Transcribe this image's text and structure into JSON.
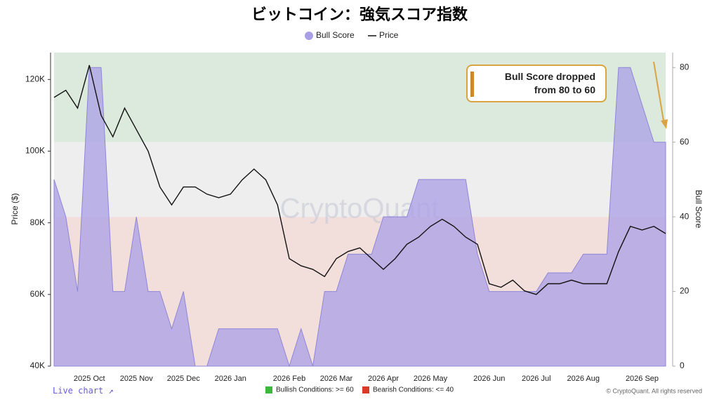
{
  "chart_data": {
    "type": "line",
    "title": "ビットコイン：強気スコア指数",
    "y_label": "Price ($)",
    "y2_label": "Bull Score",
    "watermark": "CryptoQuant",
    "annotation": "Bull Score dropped from 80 to 60",
    "live_chart": "Live chart ↗",
    "copyright": "© CryptoQuant. All rights reserved",
    "conditions": [
      {
        "label": "Bullish Conditions: >= 60",
        "color": "#3db83d"
      },
      {
        "label": "Bearish Conditions: <= 40",
        "color": "#d63b2b"
      }
    ],
    "bands": [
      {
        "from": 60,
        "to": 84,
        "color": "#dce9dd"
      },
      {
        "from": 40,
        "to": 60,
        "color": "#eeeeee"
      },
      {
        "from": 0,
        "to": 40,
        "color": "#f2dfdb"
      }
    ],
    "categories": [
      null,
      null,
      null,
      "2025 Oct",
      null,
      null,
      null,
      "2025 Nov",
      null,
      null,
      null,
      "2025 Dec",
      null,
      null,
      null,
      "2026 Jan",
      null,
      null,
      null,
      null,
      "2026 Feb",
      null,
      null,
      null,
      "2026 Mar",
      null,
      null,
      null,
      "2026 Apr",
      null,
      null,
      null,
      "2026 May",
      null,
      null,
      null,
      null,
      "2026 Jun",
      null,
      null,
      null,
      "2026 Jul",
      null,
      null,
      null,
      "2026 Aug",
      null,
      null,
      null,
      null,
      "2026 Sep",
      null,
      null
    ],
    "series": [
      {
        "name": "Bull Score",
        "color": "#a99fe6",
        "axis": "y2",
        "values": [
          50,
          40,
          20,
          80,
          80,
          20,
          20,
          40,
          20,
          20,
          10,
          20,
          0,
          0,
          10,
          10,
          10,
          10,
          10,
          10,
          0,
          10,
          0,
          20,
          20,
          30,
          30,
          30,
          40,
          40,
          40,
          50,
          50,
          50,
          50,
          50,
          30,
          20,
          20,
          20,
          20,
          20,
          25,
          25,
          25,
          30,
          30,
          30,
          80,
          80,
          70,
          60,
          60
        ]
      },
      {
        "name": "Price",
        "color": "#111111",
        "values": [
          115000,
          117000,
          112000,
          124000,
          110000,
          104000,
          112000,
          106000,
          100000,
          90000,
          85000,
          90000,
          90000,
          88000,
          87000,
          88000,
          92000,
          95000,
          92000,
          85000,
          70000,
          68000,
          67000,
          65000,
          70000,
          72000,
          73000,
          70000,
          67000,
          70000,
          74000,
          76000,
          79000,
          81000,
          79000,
          76000,
          74000,
          63000,
          62000,
          64000,
          61000,
          60000,
          63000,
          63000,
          64000,
          63000,
          63000,
          63000,
          72000,
          79000,
          78000,
          79000,
          77000
        ]
      }
    ],
    "ylim": [
      40000,
      127500
    ],
    "yticks": [
      {
        "value": 40000,
        "label": "40K"
      },
      {
        "value": 60000,
        "label": "60K"
      },
      {
        "value": 80000,
        "label": "80K"
      },
      {
        "value": 100000,
        "label": "100K"
      },
      {
        "value": 120000,
        "label": "120K"
      }
    ],
    "y2lim": [
      0,
      84
    ],
    "y2ticks": [
      0,
      20,
      40,
      60,
      80
    ]
  }
}
